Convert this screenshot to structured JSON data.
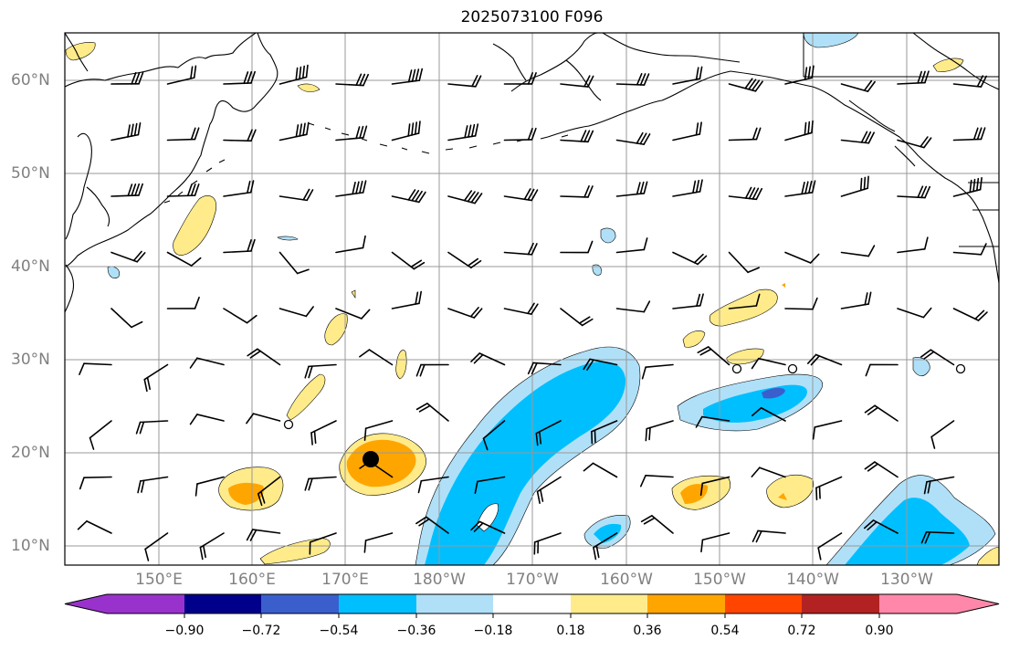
{
  "title": "2025073100 F096",
  "latitude_labels": [
    "10°N",
    "20°N",
    "30°N",
    "40°N",
    "50°N",
    "60°N"
  ],
  "longitude_labels": [
    "150°E",
    "160°E",
    "170°E",
    "180°W",
    "170°W",
    "160°W",
    "150°W",
    "140°W",
    "130°W"
  ],
  "colorbar": {
    "levels": [
      "−0.90",
      "−0.72",
      "−0.54",
      "−0.36",
      "−0.18",
      "0.18",
      "0.36",
      "0.54",
      "0.72",
      "0.90"
    ],
    "colors": [
      "#9932cc",
      "#00008b",
      "#3a5fcd",
      "#00bfff",
      "#b0e0f8",
      "#ffffff",
      "#ffeb8a",
      "#ffa500",
      "#ff4500",
      "#b22222",
      "#ff88aa"
    ]
  },
  "shading_colors": {
    "light_yellow": "#ffeb8a",
    "orange": "#ffa500",
    "light_blue": "#b0e0f8",
    "blue": "#00bfff",
    "medium_blue": "#3a5fcd"
  },
  "markers": [
    "storm-center-dot",
    "open-circle-markers"
  ]
}
